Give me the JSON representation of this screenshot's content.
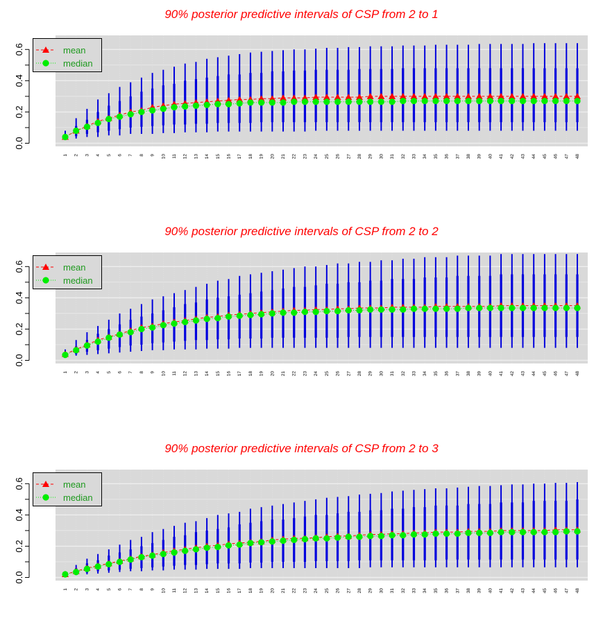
{
  "colors": {
    "title": "#ff0000",
    "panel_bg": "#d9d9d9",
    "grid_major": "#eeeeee",
    "grid_minor": "#e4e4e4",
    "interval": "#0000dd",
    "mean": "#ff0000",
    "median": "#00ee00",
    "legend_text": "#1f9a1f"
  },
  "legend": {
    "mean_label": "mean",
    "median_label": "median",
    "placement": "top-left"
  },
  "chart_data": [
    {
      "type": "interval-dot",
      "title": "90% posterior predictive  intervals of CSP from 2 to 1",
      "categories": [
        "1",
        "2",
        "3",
        "4",
        "5",
        "6",
        "7",
        "8",
        "9",
        "10",
        "11",
        "12",
        "13",
        "14",
        "15",
        "16",
        "17",
        "18",
        "19",
        "20",
        "21",
        "22",
        "23",
        "24",
        "25",
        "26",
        "27",
        "28",
        "29",
        "30",
        "31",
        "32",
        "33",
        "34",
        "35",
        "36",
        "37",
        "38",
        "39",
        "40",
        "41",
        "42",
        "43",
        "44",
        "45",
        "46",
        "47",
        "48"
      ],
      "yticks": [
        "0.0",
        "0.2",
        "0.4",
        "0.6"
      ],
      "ylim": [
        -0.02,
        0.69
      ],
      "grid": true,
      "series": [
        {
          "name": "mean",
          "values": [
            0.04,
            0.08,
            0.11,
            0.14,
            0.16,
            0.18,
            0.2,
            0.21,
            0.23,
            0.24,
            0.25,
            0.255,
            0.26,
            0.265,
            0.27,
            0.275,
            0.28,
            0.28,
            0.285,
            0.285,
            0.29,
            0.29,
            0.29,
            0.295,
            0.295,
            0.295,
            0.295,
            0.295,
            0.3,
            0.3,
            0.3,
            0.3,
            0.3,
            0.3,
            0.3,
            0.3,
            0.3,
            0.3,
            0.3,
            0.3,
            0.3,
            0.3,
            0.3,
            0.3,
            0.3,
            0.3,
            0.3,
            0.3
          ]
        },
        {
          "name": "median",
          "values": [
            0.04,
            0.08,
            0.105,
            0.13,
            0.155,
            0.17,
            0.185,
            0.2,
            0.21,
            0.22,
            0.23,
            0.235,
            0.24,
            0.245,
            0.25,
            0.25,
            0.255,
            0.26,
            0.26,
            0.26,
            0.26,
            0.265,
            0.265,
            0.265,
            0.265,
            0.265,
            0.265,
            0.265,
            0.265,
            0.265,
            0.265,
            0.27,
            0.27,
            0.27,
            0.27,
            0.27,
            0.27,
            0.27,
            0.27,
            0.27,
            0.27,
            0.27,
            0.27,
            0.27,
            0.27,
            0.27,
            0.27,
            0.27
          ]
        }
      ],
      "interval_outer": {
        "low": [
          0.02,
          0.03,
          0.04,
          0.04,
          0.05,
          0.05,
          0.06,
          0.06,
          0.06,
          0.065,
          0.065,
          0.07,
          0.07,
          0.07,
          0.075,
          0.075,
          0.075,
          0.075,
          0.075,
          0.075,
          0.075,
          0.075,
          0.075,
          0.08,
          0.08,
          0.08,
          0.08,
          0.08,
          0.08,
          0.08,
          0.08,
          0.08,
          0.08,
          0.08,
          0.08,
          0.08,
          0.08,
          0.08,
          0.08,
          0.08,
          0.08,
          0.08,
          0.08,
          0.08,
          0.08,
          0.08,
          0.08,
          0.08
        ],
        "high": [
          0.08,
          0.16,
          0.22,
          0.28,
          0.32,
          0.36,
          0.39,
          0.42,
          0.45,
          0.47,
          0.49,
          0.51,
          0.52,
          0.54,
          0.55,
          0.56,
          0.57,
          0.58,
          0.585,
          0.59,
          0.595,
          0.6,
          0.6,
          0.605,
          0.61,
          0.61,
          0.615,
          0.615,
          0.62,
          0.62,
          0.62,
          0.625,
          0.625,
          0.625,
          0.63,
          0.63,
          0.63,
          0.63,
          0.635,
          0.635,
          0.635,
          0.635,
          0.635,
          0.64,
          0.64,
          0.64,
          0.64,
          0.64
        ]
      },
      "interval_inner": {
        "low": [
          0.03,
          0.045,
          0.06,
          0.07,
          0.08,
          0.09,
          0.1,
          0.105,
          0.11,
          0.115,
          0.12,
          0.12,
          0.125,
          0.125,
          0.13,
          0.13,
          0.13,
          0.13,
          0.135,
          0.135,
          0.135,
          0.135,
          0.135,
          0.135,
          0.135,
          0.135,
          0.135,
          0.135,
          0.135,
          0.135,
          0.135,
          0.135,
          0.135,
          0.135,
          0.135,
          0.135,
          0.135,
          0.135,
          0.135,
          0.135,
          0.135,
          0.135,
          0.135,
          0.135,
          0.135,
          0.135,
          0.135,
          0.135
        ],
        "high": [
          0.055,
          0.11,
          0.15,
          0.2,
          0.24,
          0.27,
          0.3,
          0.33,
          0.35,
          0.37,
          0.38,
          0.4,
          0.41,
          0.42,
          0.43,
          0.44,
          0.44,
          0.45,
          0.45,
          0.46,
          0.46,
          0.465,
          0.465,
          0.47,
          0.47,
          0.47,
          0.47,
          0.475,
          0.475,
          0.475,
          0.475,
          0.48,
          0.48,
          0.48,
          0.48,
          0.48,
          0.48,
          0.48,
          0.48,
          0.48,
          0.48,
          0.48,
          0.48,
          0.48,
          0.48,
          0.48,
          0.48,
          0.48
        ]
      }
    },
    {
      "type": "interval-dot",
      "title": "90% posterior predictive  intervals of CSP from 2 to 2",
      "categories": [
        "1",
        "2",
        "3",
        "4",
        "5",
        "6",
        "7",
        "8",
        "9",
        "10",
        "11",
        "12",
        "13",
        "14",
        "15",
        "16",
        "17",
        "18",
        "19",
        "20",
        "21",
        "22",
        "23",
        "24",
        "25",
        "26",
        "27",
        "28",
        "29",
        "30",
        "31",
        "32",
        "33",
        "34",
        "35",
        "36",
        "37",
        "38",
        "39",
        "40",
        "41",
        "42",
        "43",
        "44",
        "45",
        "46",
        "47",
        "48"
      ],
      "yticks": [
        "0.0",
        "0.2",
        "0.4",
        "0.6"
      ],
      "ylim": [
        -0.02,
        0.69
      ],
      "grid": true,
      "series": [
        {
          "name": "mean",
          "values": [
            0.04,
            0.07,
            0.1,
            0.13,
            0.15,
            0.17,
            0.19,
            0.21,
            0.22,
            0.235,
            0.245,
            0.255,
            0.265,
            0.275,
            0.28,
            0.29,
            0.295,
            0.3,
            0.305,
            0.31,
            0.315,
            0.32,
            0.32,
            0.325,
            0.325,
            0.33,
            0.33,
            0.335,
            0.335,
            0.335,
            0.34,
            0.34,
            0.34,
            0.34,
            0.345,
            0.345,
            0.345,
            0.345,
            0.345,
            0.345,
            0.35,
            0.35,
            0.35,
            0.35,
            0.35,
            0.35,
            0.35,
            0.35
          ]
        },
        {
          "name": "median",
          "values": [
            0.035,
            0.065,
            0.095,
            0.12,
            0.145,
            0.165,
            0.18,
            0.2,
            0.21,
            0.225,
            0.235,
            0.245,
            0.255,
            0.265,
            0.27,
            0.28,
            0.285,
            0.29,
            0.295,
            0.3,
            0.305,
            0.305,
            0.31,
            0.31,
            0.315,
            0.315,
            0.32,
            0.32,
            0.325,
            0.325,
            0.325,
            0.325,
            0.33,
            0.33,
            0.33,
            0.33,
            0.33,
            0.335,
            0.335,
            0.335,
            0.335,
            0.335,
            0.335,
            0.335,
            0.335,
            0.335,
            0.335,
            0.335
          ]
        }
      ],
      "interval_outer": {
        "low": [
          0.02,
          0.03,
          0.035,
          0.04,
          0.045,
          0.05,
          0.055,
          0.06,
          0.065,
          0.065,
          0.07,
          0.07,
          0.07,
          0.075,
          0.075,
          0.075,
          0.08,
          0.08,
          0.08,
          0.08,
          0.08,
          0.08,
          0.08,
          0.08,
          0.08,
          0.08,
          0.08,
          0.08,
          0.08,
          0.08,
          0.08,
          0.08,
          0.08,
          0.08,
          0.08,
          0.08,
          0.08,
          0.08,
          0.08,
          0.08,
          0.08,
          0.08,
          0.08,
          0.08,
          0.08,
          0.08,
          0.08,
          0.08
        ],
        "high": [
          0.07,
          0.13,
          0.18,
          0.22,
          0.26,
          0.3,
          0.33,
          0.36,
          0.39,
          0.41,
          0.43,
          0.45,
          0.47,
          0.49,
          0.51,
          0.52,
          0.54,
          0.55,
          0.56,
          0.57,
          0.58,
          0.59,
          0.6,
          0.6,
          0.61,
          0.62,
          0.62,
          0.63,
          0.63,
          0.64,
          0.64,
          0.65,
          0.65,
          0.66,
          0.66,
          0.66,
          0.67,
          0.67,
          0.67,
          0.67,
          0.68,
          0.68,
          0.68,
          0.68,
          0.68,
          0.68,
          0.68,
          0.68
        ]
      },
      "interval_inner": {
        "low": [
          0.025,
          0.04,
          0.055,
          0.065,
          0.075,
          0.085,
          0.095,
          0.1,
          0.11,
          0.115,
          0.12,
          0.125,
          0.13,
          0.13,
          0.135,
          0.135,
          0.14,
          0.14,
          0.14,
          0.145,
          0.145,
          0.145,
          0.145,
          0.145,
          0.145,
          0.145,
          0.15,
          0.15,
          0.15,
          0.15,
          0.15,
          0.15,
          0.15,
          0.15,
          0.15,
          0.15,
          0.15,
          0.15,
          0.15,
          0.15,
          0.15,
          0.15,
          0.15,
          0.15,
          0.15,
          0.15,
          0.15,
          0.15
        ],
        "high": [
          0.05,
          0.09,
          0.13,
          0.17,
          0.2,
          0.23,
          0.26,
          0.28,
          0.3,
          0.32,
          0.34,
          0.36,
          0.37,
          0.39,
          0.4,
          0.41,
          0.42,
          0.43,
          0.44,
          0.45,
          0.46,
          0.47,
          0.47,
          0.48,
          0.49,
          0.49,
          0.5,
          0.5,
          0.51,
          0.51,
          0.52,
          0.52,
          0.52,
          0.53,
          0.53,
          0.53,
          0.54,
          0.54,
          0.54,
          0.54,
          0.55,
          0.55,
          0.55,
          0.55,
          0.55,
          0.55,
          0.55,
          0.55
        ]
      }
    },
    {
      "type": "interval-dot",
      "title": "90% posterior predictive  intervals of CSP from 2 to 3",
      "categories": [
        "1",
        "2",
        "3",
        "4",
        "5",
        "6",
        "7",
        "8",
        "9",
        "10",
        "11",
        "12",
        "13",
        "14",
        "15",
        "16",
        "17",
        "18",
        "19",
        "20",
        "21",
        "22",
        "23",
        "24",
        "25",
        "26",
        "27",
        "28",
        "29",
        "30",
        "31",
        "32",
        "33",
        "34",
        "35",
        "36",
        "37",
        "38",
        "39",
        "40",
        "41",
        "42",
        "43",
        "44",
        "45",
        "46",
        "47",
        "48"
      ],
      "yticks": [
        "0.0",
        "0.2",
        "0.4",
        "0.6"
      ],
      "ylim": [
        -0.02,
        0.69
      ],
      "grid": true,
      "series": [
        {
          "name": "mean",
          "values": [
            0.02,
            0.04,
            0.06,
            0.075,
            0.09,
            0.105,
            0.12,
            0.135,
            0.145,
            0.16,
            0.17,
            0.18,
            0.19,
            0.2,
            0.205,
            0.215,
            0.22,
            0.225,
            0.23,
            0.24,
            0.245,
            0.25,
            0.25,
            0.255,
            0.26,
            0.265,
            0.265,
            0.27,
            0.275,
            0.275,
            0.28,
            0.28,
            0.285,
            0.285,
            0.29,
            0.29,
            0.29,
            0.295,
            0.295,
            0.295,
            0.3,
            0.3,
            0.3,
            0.3,
            0.3,
            0.305,
            0.305,
            0.305
          ]
        },
        {
          "name": "median",
          "values": [
            0.02,
            0.035,
            0.055,
            0.07,
            0.085,
            0.1,
            0.115,
            0.13,
            0.14,
            0.15,
            0.16,
            0.17,
            0.18,
            0.19,
            0.195,
            0.205,
            0.21,
            0.22,
            0.225,
            0.23,
            0.235,
            0.24,
            0.245,
            0.25,
            0.25,
            0.255,
            0.26,
            0.26,
            0.265,
            0.265,
            0.27,
            0.27,
            0.275,
            0.275,
            0.28,
            0.28,
            0.28,
            0.285,
            0.285,
            0.285,
            0.29,
            0.29,
            0.29,
            0.29,
            0.29,
            0.29,
            0.295,
            0.295
          ]
        }
      ],
      "interval_outer": {
        "low": [
          0.01,
          0.015,
          0.02,
          0.025,
          0.03,
          0.035,
          0.04,
          0.04,
          0.045,
          0.045,
          0.05,
          0.05,
          0.05,
          0.055,
          0.055,
          0.055,
          0.055,
          0.06,
          0.06,
          0.06,
          0.06,
          0.06,
          0.06,
          0.06,
          0.06,
          0.06,
          0.06,
          0.06,
          0.065,
          0.065,
          0.065,
          0.065,
          0.065,
          0.065,
          0.065,
          0.065,
          0.065,
          0.065,
          0.065,
          0.065,
          0.065,
          0.065,
          0.065,
          0.065,
          0.065,
          0.065,
          0.065,
          0.065
        ],
        "high": [
          0.04,
          0.08,
          0.12,
          0.15,
          0.18,
          0.21,
          0.24,
          0.26,
          0.29,
          0.31,
          0.33,
          0.35,
          0.36,
          0.38,
          0.4,
          0.41,
          0.42,
          0.44,
          0.45,
          0.46,
          0.47,
          0.48,
          0.49,
          0.5,
          0.51,
          0.515,
          0.52,
          0.53,
          0.535,
          0.54,
          0.55,
          0.555,
          0.56,
          0.565,
          0.57,
          0.57,
          0.575,
          0.58,
          0.585,
          0.585,
          0.59,
          0.595,
          0.595,
          0.6,
          0.6,
          0.605,
          0.605,
          0.61
        ]
      },
      "interval_inner": {
        "low": [
          0.015,
          0.02,
          0.03,
          0.04,
          0.045,
          0.05,
          0.055,
          0.06,
          0.065,
          0.07,
          0.075,
          0.08,
          0.08,
          0.085,
          0.09,
          0.09,
          0.09,
          0.095,
          0.095,
          0.1,
          0.1,
          0.1,
          0.1,
          0.105,
          0.105,
          0.105,
          0.105,
          0.11,
          0.11,
          0.11,
          0.11,
          0.11,
          0.11,
          0.11,
          0.11,
          0.115,
          0.115,
          0.115,
          0.115,
          0.115,
          0.115,
          0.115,
          0.115,
          0.115,
          0.115,
          0.115,
          0.115,
          0.115
        ],
        "high": [
          0.03,
          0.06,
          0.09,
          0.11,
          0.14,
          0.16,
          0.18,
          0.2,
          0.22,
          0.24,
          0.26,
          0.27,
          0.29,
          0.3,
          0.31,
          0.32,
          0.34,
          0.35,
          0.36,
          0.37,
          0.37,
          0.38,
          0.39,
          0.4,
          0.4,
          0.41,
          0.42,
          0.42,
          0.43,
          0.43,
          0.44,
          0.44,
          0.45,
          0.45,
          0.46,
          0.46,
          0.46,
          0.47,
          0.47,
          0.47,
          0.48,
          0.48,
          0.48,
          0.49,
          0.49,
          0.49,
          0.49,
          0.5
        ]
      }
    }
  ]
}
